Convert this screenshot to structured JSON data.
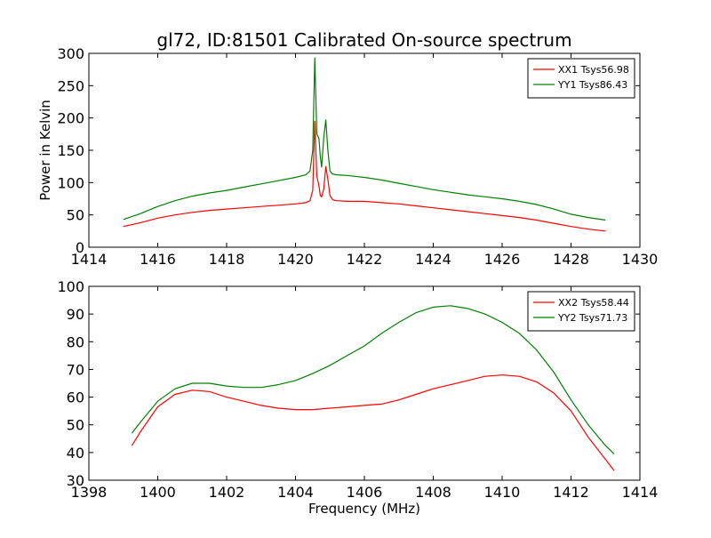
{
  "chart_data": [
    {
      "type": "line",
      "title": "gl72, ID:81501 Calibrated On-source spectrum",
      "xlabel": "",
      "ylabel": "Power in Kelvin",
      "xlim": [
        1414,
        1430
      ],
      "ylim": [
        0,
        300
      ],
      "xticks": [
        1414,
        1416,
        1418,
        1420,
        1422,
        1424,
        1426,
        1428,
        1430
      ],
      "yticks": [
        0,
        50,
        100,
        150,
        200,
        250,
        300
      ],
      "grid": false,
      "legend_position": "top-right",
      "series": [
        {
          "name": "XX1 Tsys56.98",
          "color": "#ff0000",
          "x": [
            1415.0,
            1415.5,
            1416.0,
            1416.5,
            1417.0,
            1417.5,
            1418.0,
            1418.5,
            1419.0,
            1419.5,
            1420.0,
            1420.3,
            1420.42,
            1420.5,
            1420.56,
            1420.62,
            1420.68,
            1420.72,
            1420.76,
            1420.82,
            1420.88,
            1420.94,
            1421.0,
            1421.06,
            1421.1,
            1421.2,
            1421.5,
            1422.0,
            1422.5,
            1423.0,
            1423.5,
            1424.0,
            1424.5,
            1425.0,
            1425.5,
            1426.0,
            1426.5,
            1427.0,
            1427.5,
            1428.0,
            1428.5,
            1429.0
          ],
          "values": [
            32,
            38,
            45,
            50,
            54,
            57,
            59,
            61,
            63,
            65,
            67,
            69,
            72,
            88,
            195,
            110,
            95,
            80,
            78,
            90,
            125,
            105,
            80,
            75,
            73,
            72,
            71,
            71,
            69,
            67,
            64,
            61,
            58,
            55,
            52,
            49,
            46,
            42,
            37,
            32,
            28,
            25
          ]
        },
        {
          "name": "YY1 Tsys86.43",
          "color": "#008000",
          "x": [
            1415.0,
            1415.5,
            1416.0,
            1416.5,
            1417.0,
            1417.5,
            1418.0,
            1418.5,
            1419.0,
            1419.5,
            1420.0,
            1420.3,
            1420.42,
            1420.5,
            1420.56,
            1420.62,
            1420.68,
            1420.72,
            1420.76,
            1420.82,
            1420.88,
            1420.94,
            1421.0,
            1421.06,
            1421.1,
            1421.2,
            1421.5,
            1422.0,
            1422.5,
            1423.0,
            1423.5,
            1424.0,
            1424.5,
            1425.0,
            1425.5,
            1426.0,
            1426.5,
            1427.0,
            1427.5,
            1428.0,
            1428.5,
            1429.0
          ],
          "values": [
            43,
            52,
            63,
            72,
            79,
            84,
            88,
            93,
            98,
            103,
            108,
            112,
            118,
            150,
            293,
            175,
            168,
            140,
            124,
            170,
            197,
            150,
            118,
            114,
            113,
            112,
            111,
            108,
            104,
            99,
            94,
            89,
            85,
            81,
            78,
            75,
            71,
            66,
            59,
            51,
            46,
            42
          ]
        }
      ]
    },
    {
      "type": "line",
      "title": "",
      "xlabel": "Frequency (MHz)",
      "ylabel": "",
      "xlim": [
        1398,
        1414
      ],
      "ylim": [
        30,
        100
      ],
      "xticks": [
        1398,
        1400,
        1402,
        1404,
        1406,
        1408,
        1410,
        1412,
        1414
      ],
      "yticks": [
        30,
        40,
        50,
        60,
        70,
        80,
        90,
        100
      ],
      "grid": false,
      "legend_position": "top-right",
      "series": [
        {
          "name": "XX2 Tsys58.44",
          "color": "#ff0000",
          "x": [
            1399.25,
            1399.5,
            1400.0,
            1400.5,
            1401.0,
            1401.5,
            1402.0,
            1402.5,
            1403.0,
            1403.5,
            1404.0,
            1404.5,
            1405.0,
            1405.5,
            1406.0,
            1406.5,
            1407.0,
            1407.5,
            1408.0,
            1408.5,
            1409.0,
            1409.5,
            1410.0,
            1410.5,
            1411.0,
            1411.5,
            1412.0,
            1412.5,
            1413.0,
            1413.25
          ],
          "values": [
            42.5,
            47.5,
            56.5,
            61,
            62.5,
            62,
            60,
            58.5,
            57,
            56,
            55.5,
            55.5,
            56,
            56.5,
            57,
            57.5,
            59,
            61,
            63,
            64.5,
            66,
            67.5,
            68,
            67.5,
            65.5,
            61.5,
            55,
            45.5,
            37.5,
            33.5
          ]
        },
        {
          "name": "YY2 Tsys71.73",
          "color": "#008000",
          "x": [
            1399.25,
            1399.5,
            1400.0,
            1400.5,
            1401.0,
            1401.5,
            1402.0,
            1402.5,
            1403.0,
            1403.5,
            1404.0,
            1404.5,
            1405.0,
            1405.5,
            1406.0,
            1406.5,
            1407.0,
            1407.5,
            1408.0,
            1408.5,
            1409.0,
            1409.5,
            1410.0,
            1410.5,
            1411.0,
            1411.5,
            1412.0,
            1412.5,
            1413.0,
            1413.25
          ],
          "values": [
            47,
            51,
            58.5,
            63,
            65,
            65,
            64,
            63.5,
            63.5,
            64.5,
            66,
            68.5,
            71.5,
            75,
            78.5,
            83,
            87,
            90.5,
            92.5,
            93,
            92,
            90,
            87,
            83,
            77,
            69,
            59,
            50,
            42.5,
            39.5
          ]
        }
      ]
    }
  ]
}
